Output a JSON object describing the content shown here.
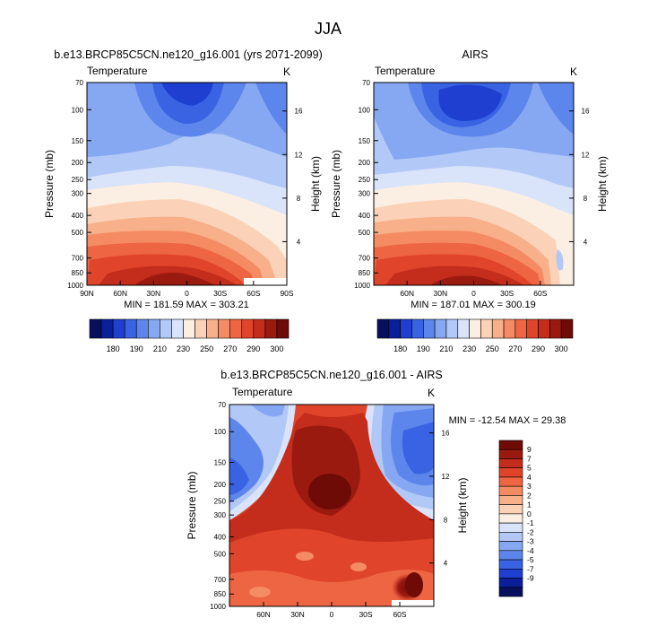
{
  "page_title": "JJA",
  "colors": {
    "blues": [
      "#08105e",
      "#0c1f9a",
      "#1e3fcf",
      "#3a63e3",
      "#5d86ec",
      "#86a7f2",
      "#b2c8f7",
      "#d9e3fa"
    ],
    "neutral": "#fbeee2",
    "reds": [
      "#fbd2b7",
      "#f8b08a",
      "#f48b63",
      "#ee6543",
      "#e0452b",
      "#c42d1b",
      "#9b1a10",
      "#6e0b06"
    ]
  },
  "chart_data": [
    {
      "type": "heatmap",
      "title": "b.e13.BRCP85C5CN.ne120_g16.001 (yrs 2071-2099)",
      "left_label": "Temperature",
      "right_label": "K",
      "ylabel": "Pressure (mb)",
      "y2label": "Height (km)",
      "pressure_ticks": [
        "70",
        "100",
        "150",
        "200",
        "250",
        "300",
        "400",
        "500",
        "700",
        "850",
        "1000"
      ],
      "height_ticks": [
        "4",
        "8",
        "12",
        "16"
      ],
      "lat_ticks": [
        "90N",
        "60N",
        "30N",
        "0",
        "30S",
        "60S",
        "90S"
      ],
      "xlim": [
        90,
        -90
      ],
      "stats": "MIN = 181.59   MAX = 303.21",
      "colorbar_labels": [
        "180",
        "190",
        "210",
        "230",
        "250",
        "270",
        "290",
        "300"
      ],
      "min": 181.59,
      "max": 303.21
    },
    {
      "type": "heatmap",
      "title": "AIRS",
      "left_label": "Temperature",
      "right_label": "K",
      "ylabel": "Pressure (mb)",
      "y2label": "Height (km)",
      "pressure_ticks": [
        "70",
        "100",
        "150",
        "200",
        "250",
        "300",
        "400",
        "500",
        "700",
        "850",
        "1000"
      ],
      "height_ticks": [
        "4",
        "8",
        "12",
        "16"
      ],
      "lat_ticks": [
        "60N",
        "30N",
        "0",
        "30S",
        "60S"
      ],
      "xlim": [
        90,
        -90
      ],
      "stats": "MIN = 187.01   MAX = 300.19",
      "colorbar_labels": [
        "180",
        "190",
        "210",
        "230",
        "250",
        "270",
        "290",
        "300"
      ],
      "min": 187.01,
      "max": 300.19
    },
    {
      "type": "heatmap",
      "title": "b.e13.BRCP85C5CN.ne120_g16.001 - AIRS",
      "left_label": "Temperature",
      "right_label": "K",
      "ylabel": "Pressure (mb)",
      "y2label": "Height (km)",
      "pressure_ticks": [
        "70",
        "100",
        "150",
        "200",
        "250",
        "300",
        "400",
        "500",
        "700",
        "850",
        "1000"
      ],
      "height_ticks": [
        "4",
        "8",
        "12",
        "16"
      ],
      "lat_ticks": [
        "60N",
        "30N",
        "0",
        "30S",
        "60S"
      ],
      "xlim": [
        90,
        -90
      ],
      "stats": "MIN = -12.54   MAX = 29.38",
      "colorbar_labels": [
        "9",
        "7",
        "5",
        "4",
        "3",
        "2",
        "1",
        "0",
        "-1",
        "-2",
        "-3",
        "-4",
        "-5",
        "-7",
        "-9"
      ],
      "min": -12.54,
      "max": 29.38
    }
  ]
}
